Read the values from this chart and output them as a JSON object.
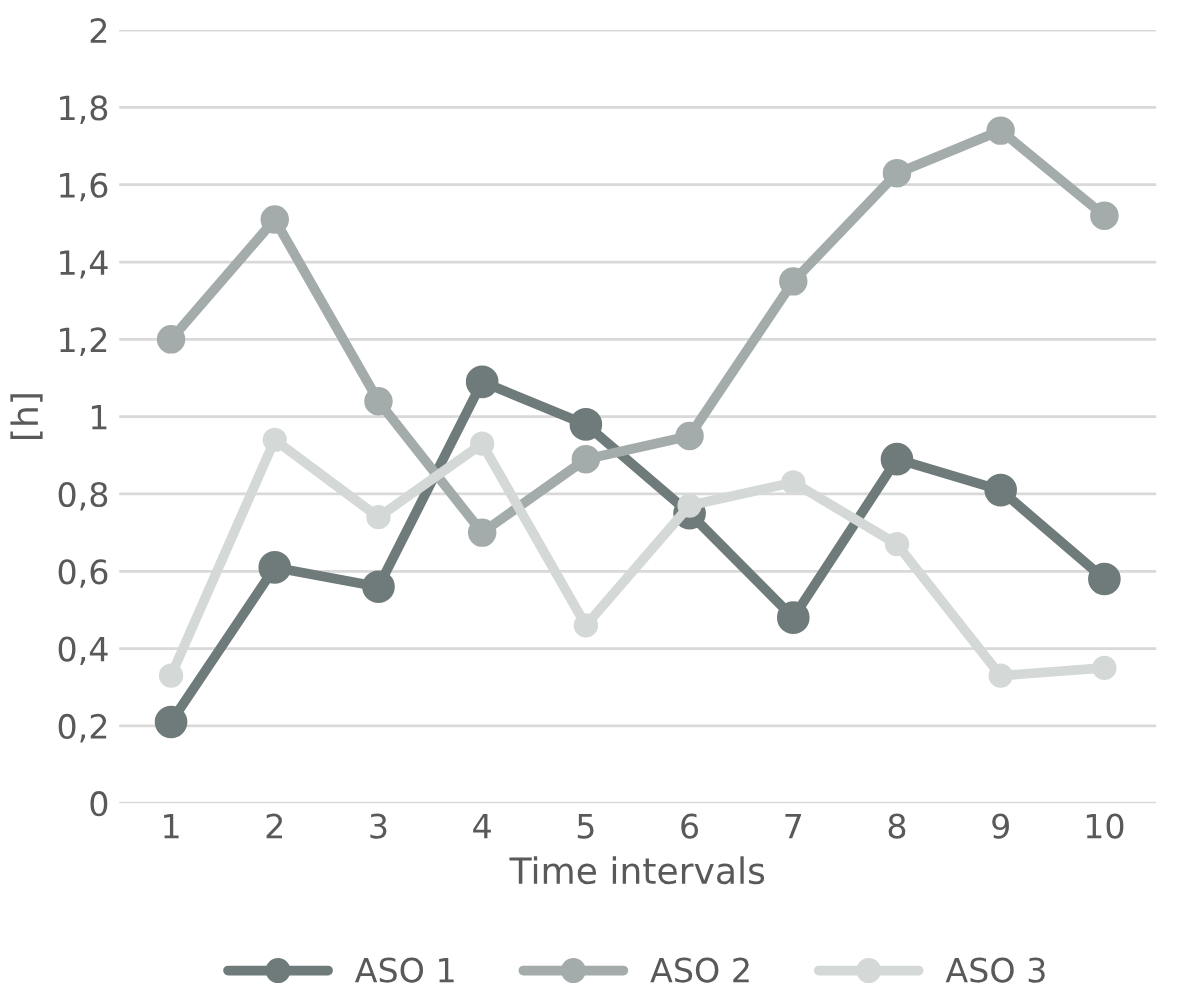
{
  "chart_data": {
    "type": "line",
    "xlabel": "Time intervals",
    "ylabel": "[h]",
    "categories": [
      "1",
      "2",
      "3",
      "4",
      "5",
      "6",
      "7",
      "8",
      "9",
      "10"
    ],
    "series": [
      {
        "name": "ASO 1",
        "color": "#6f7b7a",
        "values": [
          0.21,
          0.61,
          0.56,
          1.09,
          0.98,
          0.75,
          0.48,
          0.89,
          0.81,
          0.58
        ]
      },
      {
        "name": "ASO 2",
        "color": "#a3acab",
        "values": [
          1.2,
          1.51,
          1.04,
          0.7,
          0.89,
          0.95,
          1.35,
          1.63,
          1.74,
          1.52
        ]
      },
      {
        "name": "ASO 3",
        "color": "#d4d9d8",
        "values": [
          0.33,
          0.94,
          0.74,
          0.93,
          0.46,
          0.77,
          0.83,
          0.67,
          0.33,
          0.35
        ]
      }
    ],
    "ylim": [
      0,
      2
    ],
    "yticks": [
      0,
      {
        "value": 0.2,
        "label": "0,2"
      },
      {
        "value": 0.4,
        "label": "0,4"
      },
      {
        "value": 0.6,
        "label": "0,6"
      },
      {
        "value": 0.8,
        "label": "0,8"
      },
      1,
      {
        "value": 1.2,
        "label": "1,2"
      },
      {
        "value": 1.4,
        "label": "1,4"
      },
      {
        "value": 1.6,
        "label": "1,6"
      },
      {
        "value": 1.8,
        "label": "1,8"
      },
      2
    ],
    "grid": "y",
    "legend": "bottom",
    "marker": "circle",
    "line_style": "solid"
  }
}
